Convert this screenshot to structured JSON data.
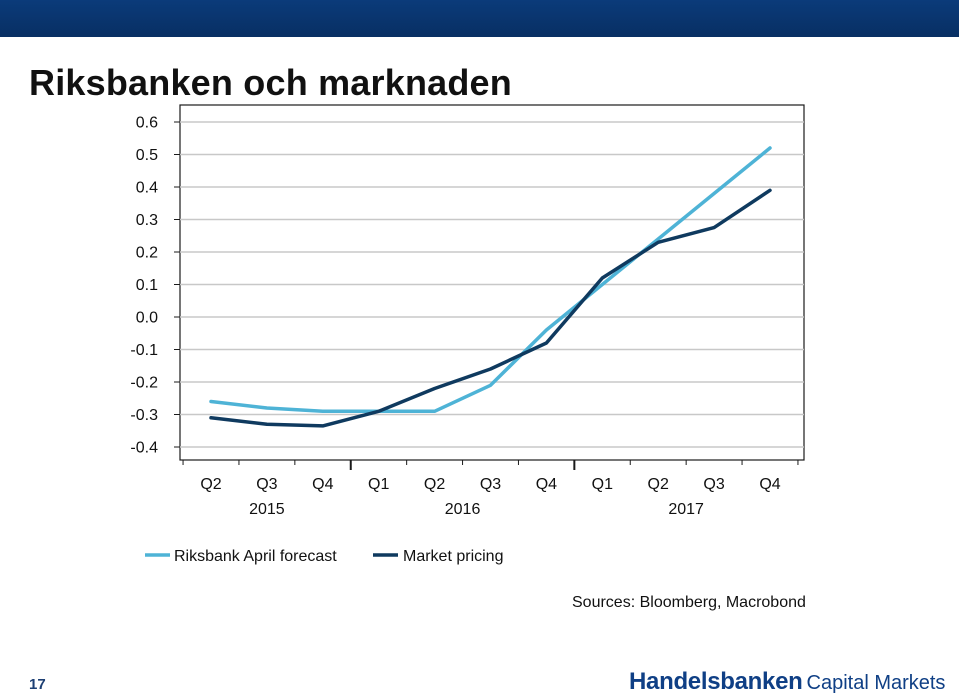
{
  "slide": {
    "title": "Riksbanken och marknaden",
    "page_number": "17",
    "sources": "Sources: Bloomberg, Macrobond",
    "logo": {
      "brand": "Handelsbanken",
      "sub": "Capital Markets"
    }
  },
  "colors": {
    "top_bar": "#0b3b7a",
    "riksbank_line": "#4eb3d6",
    "market_line": "#0f3a5f",
    "logo": "#0f3f85"
  },
  "chart_data": {
    "type": "line",
    "title": "",
    "xlabel": "",
    "ylabel": "",
    "categories": [
      "Q2",
      "Q3",
      "Q4",
      "Q1",
      "Q2",
      "Q3",
      "Q4",
      "Q1",
      "Q2",
      "Q3",
      "Q4"
    ],
    "year_labels": [
      {
        "label": "2015",
        "from": 0,
        "to": 2
      },
      {
        "label": "2016",
        "from": 3,
        "to": 6
      },
      {
        "label": "2017",
        "from": 7,
        "to": 10
      }
    ],
    "yticks": [
      "0.6",
      "0.5",
      "0.4",
      "0.3",
      "0.2",
      "0.1",
      "0.0",
      "-0.1",
      "-0.2",
      "-0.3",
      "-0.4"
    ],
    "ylim": [
      -0.4,
      0.6
    ],
    "grid": true,
    "legend_position": "bottom-left",
    "series": [
      {
        "name": "Riksbank April forecast",
        "color": "#4eb3d6",
        "x": [
          0,
          1,
          2,
          3,
          4,
          5,
          6,
          7,
          8,
          9,
          10
        ],
        "values": [
          -0.26,
          -0.28,
          -0.29,
          -0.29,
          -0.29,
          -0.21,
          -0.04,
          0.1,
          0.24,
          0.38,
          0.52
        ]
      },
      {
        "name": "Market pricing",
        "color": "#0f3a5f",
        "x": [
          0,
          1,
          2,
          3,
          4,
          5,
          6,
          7,
          8,
          9,
          10
        ],
        "values": [
          -0.31,
          -0.33,
          -0.335,
          -0.29,
          -0.22,
          -0.16,
          -0.08,
          0.12,
          0.23,
          0.275,
          0.39
        ]
      }
    ]
  }
}
